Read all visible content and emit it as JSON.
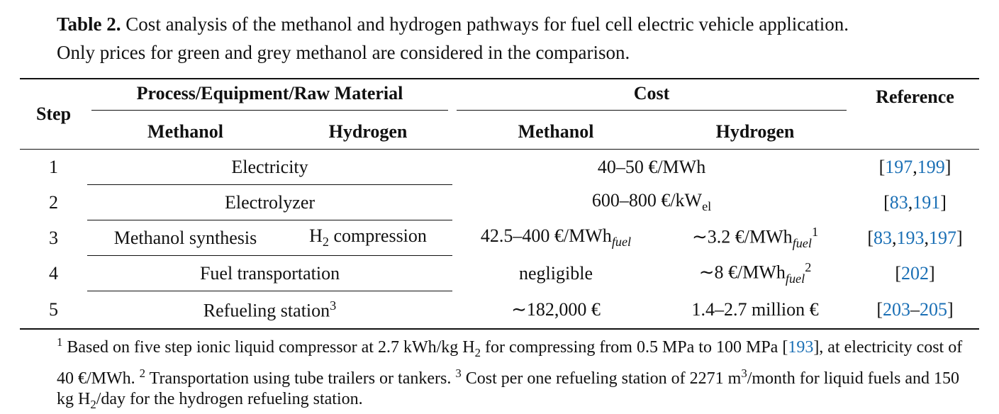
{
  "caption": {
    "label": "Table 2.",
    "lines": [
      "Cost analysis of the methanol and hydrogen pathways for fuel cell electric vehicle application.",
      "Only prices for green and grey methanol are considered in the comparison."
    ]
  },
  "table": {
    "header": {
      "step": "Step",
      "process": "Process/Equipment/Raw Material",
      "cost": "Cost",
      "reference": "Reference",
      "process_methanol": "Methanol",
      "process_hydrogen": "Hydrogen",
      "cost_methanol": "Methanol",
      "cost_hydrogen": "Hydrogen"
    },
    "rows": [
      {
        "step": "1",
        "process": [
          {
            "text": "Electricity"
          }
        ],
        "cost": [
          {
            "text": "40–50 €/MWh"
          }
        ],
        "reference": [
          {
            "text": "["
          },
          {
            "text": "197",
            "style": "link"
          },
          {
            "text": ","
          },
          {
            "text": "199",
            "style": "link"
          },
          {
            "text": "]"
          }
        ]
      },
      {
        "step": "2",
        "process": [
          {
            "text": "Electrolyzer"
          }
        ],
        "cost": [
          {
            "text": "600–800 €/kW"
          },
          {
            "text": "el",
            "style": "sub"
          }
        ],
        "reference": [
          {
            "text": "["
          },
          {
            "text": "83",
            "style": "link"
          },
          {
            "text": ","
          },
          {
            "text": "191",
            "style": "link"
          },
          {
            "text": "]"
          }
        ]
      },
      {
        "step": "3",
        "process_methanol": [
          {
            "text": "Methanol synthesis"
          }
        ],
        "process_hydrogen": [
          {
            "text": "H"
          },
          {
            "text": "2",
            "style": "sub"
          },
          {
            "text": " compression"
          }
        ],
        "cost_methanol": [
          {
            "text": "42.5–400 €/MWh"
          },
          {
            "text": "fuel",
            "style": "sub"
          }
        ],
        "cost_hydrogen": [
          {
            "text": "∼3.2 €/MWh"
          },
          {
            "text": "fuel",
            "style": "sub"
          },
          {
            "text": "1",
            "style": "sup"
          }
        ],
        "reference": [
          {
            "text": "["
          },
          {
            "text": "83",
            "style": "link"
          },
          {
            "text": ","
          },
          {
            "text": "193",
            "style": "link"
          },
          {
            "text": ","
          },
          {
            "text": "197",
            "style": "link"
          },
          {
            "text": "]"
          }
        ]
      },
      {
        "step": "4",
        "process": [
          {
            "text": "Fuel transportation"
          }
        ],
        "cost_methanol": [
          {
            "text": "negligible"
          }
        ],
        "cost_hydrogen": [
          {
            "text": "∼8 €/MWh"
          },
          {
            "text": "fuel",
            "style": "sub"
          },
          {
            "text": "2",
            "style": "sup"
          }
        ],
        "reference": [
          {
            "text": "["
          },
          {
            "text": "202",
            "style": "link"
          },
          {
            "text": "]"
          }
        ]
      },
      {
        "step": "5",
        "process": [
          {
            "text": "Refueling station"
          },
          {
            "text": "3",
            "style": "sup"
          }
        ],
        "cost_methanol": [
          {
            "text": "∼182,000 €"
          }
        ],
        "cost_hydrogen": [
          {
            "text": "1.4–2.7 million €"
          }
        ],
        "reference": [
          {
            "text": "["
          },
          {
            "text": "203",
            "style": "link"
          },
          {
            "text": "–"
          },
          {
            "text": "205",
            "style": "link"
          },
          {
            "text": "]"
          }
        ]
      }
    ]
  },
  "footnotes": [
    {
      "text": "1",
      "style": "sup"
    },
    {
      "text": " Based on five step ionic liquid compressor at 2.7 kWh/kg H"
    },
    {
      "text": "2",
      "style": "sub"
    },
    {
      "text": " for compressing from 0.5 MPa to 100 MPa ["
    },
    {
      "text": "193",
      "style": "link"
    },
    {
      "text": "], at electricity cost of 40 €/MWh. "
    },
    {
      "text": "2",
      "style": "sup"
    },
    {
      "text": " Transportation using tube trailers or tankers. "
    },
    {
      "text": "3",
      "style": "sup"
    },
    {
      "text": " Cost per one refueling station of 2271 m"
    },
    {
      "text": "3",
      "style": "sup"
    },
    {
      "text": "/month for liquid fuels and 150 kg H"
    },
    {
      "text": "2",
      "style": "sub"
    },
    {
      "text": "/day for the hydrogen refueling station."
    }
  ]
}
